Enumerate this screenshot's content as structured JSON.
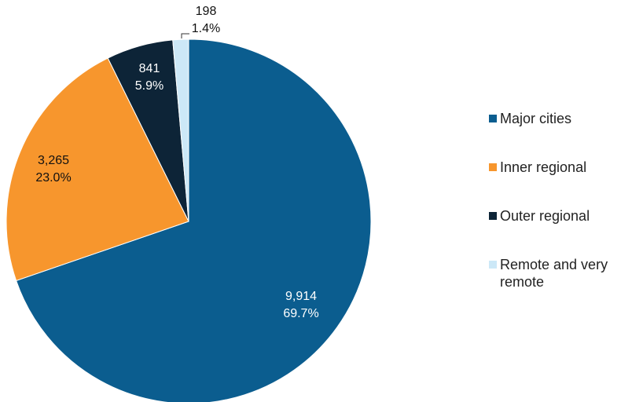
{
  "chart_data": {
    "type": "pie",
    "categories": [
      "Major cities",
      "Inner regional",
      "Outer regional",
      "Remote and very remote"
    ],
    "values": [
      9914,
      3265,
      841,
      198
    ],
    "value_labels": [
      "9,914",
      "3,265",
      "841",
      "198"
    ],
    "percentages": [
      69.7,
      23.0,
      5.9,
      1.4
    ],
    "percentage_labels": [
      "69.7%",
      "23.0%",
      "5.9%",
      "1.4%"
    ],
    "colors": [
      "#0b5d8f",
      "#f7962d",
      "#0d2437",
      "#cce8f7"
    ],
    "legend": "right"
  }
}
